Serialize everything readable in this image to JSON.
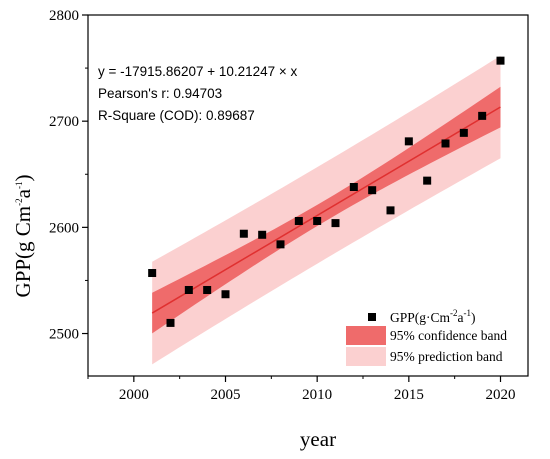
{
  "chart_data": {
    "type": "scatter",
    "x": [
      2001,
      2002,
      2003,
      2004,
      2005,
      2006,
      2007,
      2008,
      2009,
      2010,
      2011,
      2012,
      2013,
      2014,
      2015,
      2016,
      2017,
      2018,
      2019,
      2020
    ],
    "y": [
      2557,
      2510,
      2541,
      2541,
      2537,
      2594,
      2593,
      2584,
      2606,
      2606,
      2604,
      2638,
      2635,
      2616,
      2681,
      2644,
      2679,
      2689,
      2705,
      2757
    ],
    "series_name_parts": {
      "base": "GPP(g·Cm",
      "exp1": "-2",
      "mid": "a",
      "exp2": "-1",
      "end": ")"
    },
    "fit": {
      "intercept": -17915.86207,
      "slope": 10.21247
    },
    "annotations": {
      "equation": "y = -17915.86207 + 10.21247 × x",
      "pearson": "Pearson's r: 0.94703",
      "rsquare": "R-Square (COD): 0.89687"
    },
    "legend": {
      "confidence": "95% confidence band",
      "prediction": "95% prediction band",
      "position": "bottom-right"
    },
    "xlabel": "year",
    "ylabel_parts": {
      "base": "GPP(g Cm",
      "exp1": "-2",
      "mid": "a",
      "exp2": "-1",
      "end": ")"
    },
    "xlim": [
      1997.5,
      2021.5
    ],
    "ylim": [
      2460,
      2800
    ],
    "xticks": [
      2000,
      2005,
      2010,
      2015,
      2020
    ],
    "yticks": [
      2500,
      2600,
      2700,
      2800
    ],
    "colors": {
      "points": "#000000",
      "fit_line": "#e03030",
      "confidence_band": "#ef6b6b",
      "prediction_band": "#fbd0d0"
    },
    "grid": false
  }
}
